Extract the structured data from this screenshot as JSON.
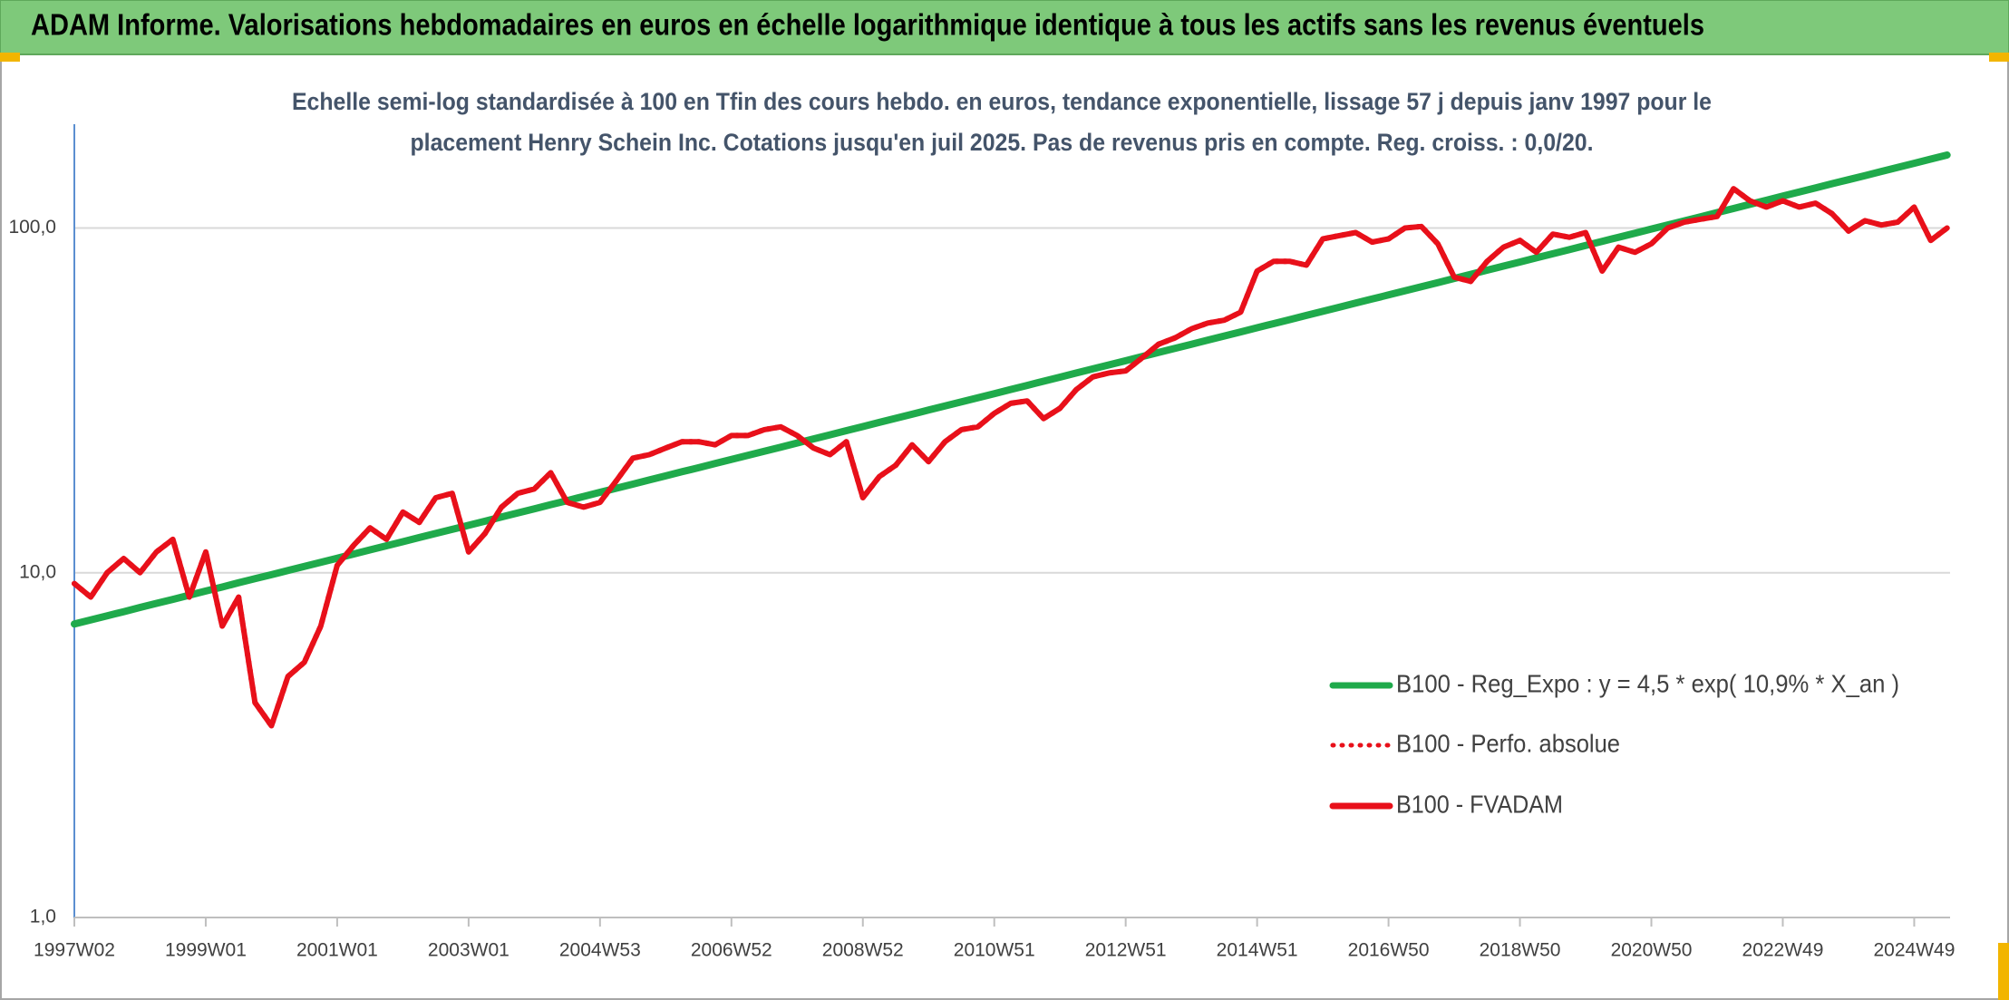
{
  "chart_data": {
    "type": "line",
    "title": "ADAM Informe. Valorisations hebdomadaires en euros en échelle logarithmique identique à tous les actifs sans les revenus éventuels",
    "subtitle": [
      "Echelle semi-log standardisée à 100 en Tfin des cours hebdo. en euros, tendance exponentielle, lissage 57 j depuis janv 1997 pour le",
      "placement Henry Schein Inc. Cotations jusqu'en juil 2025. Pas de revenus pris en compte. Reg. croiss. : 0,0/20."
    ],
    "log_scale": true,
    "grid": true,
    "legend": "right",
    "ylim": [
      1,
      200
    ],
    "yticks": [
      {
        "value": 1,
        "label": "1,0"
      },
      {
        "value": 10,
        "label": "10,0"
      },
      {
        "value": 100,
        "label": "100,0"
      }
    ],
    "categories": [
      "1997W02",
      null,
      null,
      null,
      null,
      null,
      null,
      null,
      "1999W01",
      null,
      null,
      null,
      null,
      null,
      null,
      null,
      "2001W01",
      null,
      null,
      null,
      null,
      null,
      null,
      null,
      "2003W01",
      null,
      null,
      null,
      null,
      null,
      null,
      null,
      "2004W53",
      null,
      null,
      null,
      null,
      null,
      null,
      null,
      "2006W52",
      null,
      null,
      null,
      null,
      null,
      null,
      null,
      "2008W52",
      null,
      null,
      null,
      null,
      null,
      null,
      null,
      "2010W51",
      null,
      null,
      null,
      null,
      null,
      null,
      null,
      "2012W51",
      null,
      null,
      null,
      null,
      null,
      null,
      null,
      "2014W51",
      null,
      null,
      null,
      null,
      null,
      null,
      null,
      "2016W50",
      null,
      null,
      null,
      null,
      null,
      null,
      null,
      "2018W50",
      null,
      null,
      null,
      null,
      null,
      null,
      null,
      "2020W50",
      null,
      null,
      null,
      null,
      null,
      null,
      null,
      "2022W49",
      null,
      null,
      null,
      null,
      null,
      null,
      null,
      "2024W49",
      null,
      null
    ],
    "series": [
      {
        "name": "B100 - Reg_Expo : y = 4,5 * exp( 10,9% *  X_an )",
        "color": "#1faa4b",
        "style": "solid",
        "values": [
          7.1,
          7.3,
          7.5,
          7.71,
          7.93,
          8.15,
          8.37,
          8.61,
          8.85,
          9.09,
          9.35,
          9.61,
          9.87,
          10.15,
          10.43,
          10.72,
          11.02,
          11.33,
          11.65,
          11.97,
          12.3,
          12.65,
          13.0,
          13.36,
          13.73,
          14.11,
          14.51,
          14.91,
          15.33,
          15.76,
          16.19,
          16.64,
          17.11,
          17.59,
          18.07,
          18.58,
          19.1,
          19.63,
          20.17,
          20.74,
          21.31,
          21.91,
          22.52,
          23.14,
          23.79,
          24.45,
          25.13,
          25.83,
          26.55,
          27.29,
          28.05,
          28.83,
          29.64,
          30.46,
          31.31,
          32.18,
          33.08,
          34.0,
          34.95,
          35.93,
          36.93,
          37.96,
          39.01,
          40.1,
          41.21,
          42.36,
          43.54,
          44.76,
          46.0,
          47.29,
          48.6,
          49.96,
          51.35,
          52.78,
          54.25,
          55.76,
          57.31,
          58.91,
          60.55,
          62.23,
          63.97,
          65.75,
          67.58,
          69.46,
          71.4,
          73.38,
          75.43,
          77.53,
          79.69,
          81.91,
          84.19,
          86.53,
          88.95,
          91.42,
          93.97,
          96.6,
          99.29,
          102.05,
          104.9,
          107.8,
          110.8,
          113.9,
          117.1,
          120.3,
          123.7,
          127.2,
          130.7,
          134.4,
          138.1,
          141.9,
          145.9,
          149.9,
          154.1,
          158.4,
          162.8
        ]
      },
      {
        "name": "B100 - Perfo. absolue",
        "color": "#e8101a",
        "style": "dotted",
        "values": [
          9.3,
          8.5,
          10.0,
          11.0,
          10.0,
          11.5,
          12.5,
          8.5,
          11.5,
          7.0,
          8.5,
          4.2,
          3.6,
          5.0,
          5.5,
          7.0,
          10.5,
          12.0,
          13.5,
          12.5,
          15.0,
          14.0,
          16.5,
          17.0,
          11.5,
          13.0,
          15.5,
          17.0,
          17.5,
          19.5,
          16.0,
          15.5,
          16.0,
          18.5,
          21.5,
          22.0,
          23.0,
          24.0,
          24.0,
          23.5,
          25.0,
          25.0,
          26.0,
          26.5,
          25.0,
          23.0,
          22.0,
          24.0,
          16.5,
          19.0,
          20.5,
          23.5,
          21.0,
          24.0,
          26.0,
          26.5,
          29.0,
          31.0,
          31.5,
          28.0,
          30.0,
          34.0,
          37.0,
          38.0,
          38.5,
          42.0,
          46.0,
          48.0,
          51.0,
          53.0,
          54.0,
          57.0,
          75.0,
          80.0,
          80.0,
          78.0,
          93.0,
          95.0,
          97.0,
          91.0,
          93.0,
          100.0,
          101.0,
          90.0,
          72.0,
          70.0,
          80.0,
          88.0,
          92.0,
          85.0,
          96.0,
          94.0,
          97.0,
          75.0,
          88.0,
          85.0,
          90.0,
          100.0,
          104.0,
          106.0,
          108.0,
          130.0,
          120.0,
          115.0,
          120.0,
          115.0,
          118.0,
          110.0,
          98.0,
          105.0,
          102.0,
          104.0,
          115.0,
          92.0,
          100.0
        ]
      },
      {
        "name": "B100 - FVADAM",
        "color": "#e8101a",
        "style": "solid",
        "values": [
          9.3,
          8.5,
          10.0,
          11.0,
          10.0,
          11.5,
          12.5,
          8.5,
          11.5,
          7.0,
          8.5,
          4.2,
          3.6,
          5.0,
          5.5,
          7.0,
          10.5,
          12.0,
          13.5,
          12.5,
          15.0,
          14.0,
          16.5,
          17.0,
          11.5,
          13.0,
          15.5,
          17.0,
          17.5,
          19.5,
          16.0,
          15.5,
          16.0,
          18.5,
          21.5,
          22.0,
          23.0,
          24.0,
          24.0,
          23.5,
          25.0,
          25.0,
          26.0,
          26.5,
          25.0,
          23.0,
          22.0,
          24.0,
          16.5,
          19.0,
          20.5,
          23.5,
          21.0,
          24.0,
          26.0,
          26.5,
          29.0,
          31.0,
          31.5,
          28.0,
          30.0,
          34.0,
          37.0,
          38.0,
          38.5,
          42.0,
          46.0,
          48.0,
          51.0,
          53.0,
          54.0,
          57.0,
          75.0,
          80.0,
          80.0,
          78.0,
          93.0,
          95.0,
          97.0,
          91.0,
          93.0,
          100.0,
          101.0,
          90.0,
          72.0,
          70.0,
          80.0,
          88.0,
          92.0,
          85.0,
          96.0,
          94.0,
          97.0,
          75.0,
          88.0,
          85.0,
          90.0,
          100.0,
          104.0,
          106.0,
          108.0,
          130.0,
          120.0,
          115.0,
          120.0,
          115.0,
          118.0,
          110.0,
          98.0,
          105.0,
          102.0,
          104.0,
          115.0,
          92.0,
          100.0
        ]
      }
    ]
  }
}
